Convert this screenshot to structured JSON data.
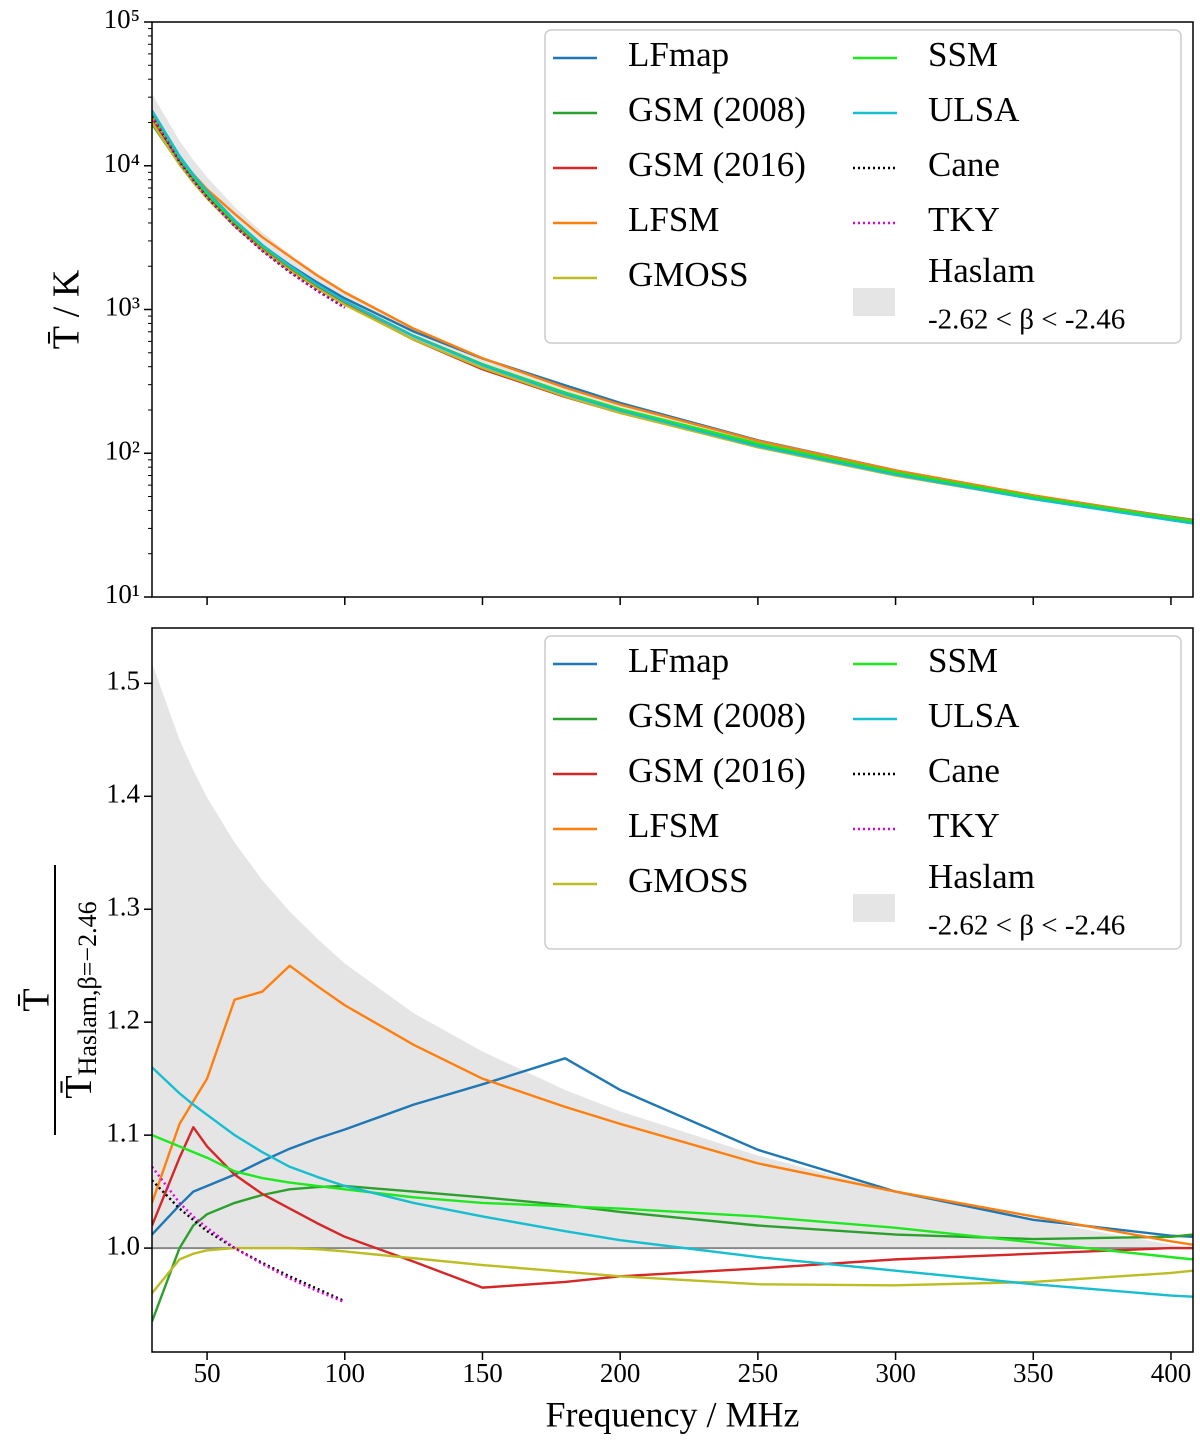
{
  "chart_data": [
    {
      "type": "line",
      "yscale": "log",
      "ylabel": "T̄ / K",
      "xlim": [
        30,
        408
      ],
      "ylim": [
        10,
        100000
      ],
      "yticks": [
        {
          "value": 10,
          "label": "10¹"
        },
        {
          "value": 100,
          "label": "10²"
        },
        {
          "value": 1000,
          "label": "10³"
        },
        {
          "value": 10000,
          "label": "10⁴"
        },
        {
          "value": 100000,
          "label": "10⁵"
        }
      ],
      "xticks": [
        50,
        100,
        150,
        200,
        250,
        300,
        350,
        400
      ],
      "legend": "upper right",
      "x": [
        30,
        40,
        45,
        50,
        60,
        70,
        80,
        90,
        100,
        125,
        150,
        180,
        200,
        250,
        300,
        350,
        400,
        408
      ],
      "band": {
        "name": "Haslam",
        "range_label": "-2.62 < β < -2.46",
        "color": "#e5e5e5",
        "upper": [
          31700,
          14910,
          10960,
          8320,
          5160,
          3446,
          2429,
          1784,
          1353,
          754,
          467,
          290,
          220,
          123,
          76.0,
          50.8,
          35.8,
          34
        ],
        "lower": [
          20880,
          10285,
          7705,
          5946,
          3798,
          2599,
          1871,
          1400,
          1081,
          624,
          398,
          254.5,
          196.4,
          113.4,
          72.4,
          49.6,
          35.7,
          34
        ]
      },
      "series": [
        {
          "name": "LFmap",
          "color": "#1f77b4",
          "linestyle": "solid",
          "values": [
            21130,
            10680,
            8090,
            6270,
            4040,
            2800,
            2040,
            1540,
            1195,
            703,
            456,
            297,
            224,
            123,
            76.0,
            50.8,
            36.1,
            34.3
          ]
        },
        {
          "name": "GSM (2008)",
          "color": "#2ca02c",
          "linestyle": "solid",
          "values": [
            19520,
            10285,
            7860,
            6120,
            3950,
            2720,
            1970,
            1476,
            1140,
            655,
            416,
            264,
            203,
            116,
            73.3,
            50.0,
            36.1,
            34.4
          ]
        },
        {
          "name": "GSM (2016)",
          "color": "#d62728",
          "linestyle": "solid",
          "values": [
            21300,
            11110,
            8530,
            6480,
            4040,
            2720,
            1940,
            1430,
            1092,
            617,
            384,
            247,
            191,
            111,
            71.7,
            49.4,
            35.7,
            34.0
          ]
        },
        {
          "name": "LFSM",
          "color": "#ff7f0e",
          "linestyle": "solid",
          "values": [
            21720,
            11420,
            8710,
            6840,
            4630,
            3190,
            2340,
            1725,
            1313,
            736,
            458,
            286,
            218,
            122,
            76.0,
            51.0,
            35.9,
            34.1
          ]
        },
        {
          "name": "GMOSS",
          "color": "#bcbd22",
          "linestyle": "solid",
          "values": [
            20040,
            10180,
            7670,
            5930,
            3798,
            2599,
            1871,
            1399,
            1078,
            618,
            392,
            249,
            191,
            110,
            70.0,
            48.1,
            34.9,
            33.3
          ]
        },
        {
          "name": "SSM",
          "color": "#1ee81e",
          "linestyle": "solid",
          "values": [
            22970,
            11210,
            8360,
            6420,
            4060,
            2760,
            1980,
            1477,
            1137,
            652,
            414,
            264,
            203,
            117,
            73.7,
            49.8,
            35.4,
            33.7
          ]
        },
        {
          "name": "ULSA",
          "color": "#17becf",
          "linestyle": "solid",
          "values": [
            24220,
            11690,
            8680,
            6650,
            4180,
            2820,
            2010,
            1488,
            1140,
            649,
            409,
            258,
            198,
            112,
            71.0,
            48.0,
            34.2,
            32.5
          ]
        },
        {
          "name": "Cane",
          "color": "#000000",
          "linestyle": "dotted",
          "values": [
            22130,
            10645,
            7900,
            6035,
            3798,
            2565,
            1824,
            1350,
            1030,
            null,
            null,
            null,
            null,
            null,
            null,
            null,
            null,
            null
          ]
        },
        {
          "name": "TKY",
          "color": "#e000e0",
          "linestyle": "dotted",
          "values": [
            22380,
            10700,
            7920,
            6050,
            3798,
            2563,
            1820,
            1347,
            1029,
            null,
            null,
            null,
            null,
            null,
            null,
            null,
            null,
            null
          ]
        }
      ]
    },
    {
      "type": "line",
      "yscale": "linear",
      "ylabel_numerator": "T̄",
      "ylabel_denominator": "T̄",
      "ylabel_subscript": "Haslam,β=−2.46",
      "xlabel": "Frequency / MHz",
      "xlim": [
        30,
        408
      ],
      "ylim": [
        0.908,
        1.549
      ],
      "yticks": [
        {
          "value": 1,
          "label": "1.0"
        },
        1.1,
        1.2,
        1.3,
        1.4,
        1.5
      ],
      "xticks": [
        50,
        100,
        150,
        200,
        250,
        300,
        350,
        400
      ],
      "hline": 1,
      "legend": "upper right",
      "x": [
        30,
        40,
        45,
        50,
        60,
        70,
        80,
        90,
        100,
        125,
        150,
        180,
        200,
        250,
        300,
        350,
        400,
        408
      ],
      "band": {
        "name": "Haslam",
        "range_label": "-2.62 < β < -2.46",
        "color": "#e5e5e5",
        "upper": [
          1.518,
          1.45,
          1.423,
          1.399,
          1.359,
          1.326,
          1.298,
          1.274,
          1.252,
          1.208,
          1.174,
          1.14,
          1.121,
          1.082,
          1.05,
          1.025,
          1.003,
          1.0
        ],
        "lower": [
          1,
          1,
          1,
          1,
          1,
          1,
          1,
          1,
          1,
          1,
          1,
          1,
          1,
          1,
          1,
          1,
          1,
          1
        ]
      },
      "series": [
        {
          "name": "LFmap",
          "color": "#1f77b4",
          "linestyle": "solid",
          "values": [
            1.012,
            1.038,
            1.05,
            1.055,
            1.065,
            1.077,
            1.088,
            1.097,
            1.105,
            1.127,
            1.145,
            1.168,
            1.14,
            1.087,
            1.05,
            1.025,
            1.011,
            1.01
          ]
        },
        {
          "name": "GSM (2008)",
          "color": "#2ca02c",
          "linestyle": "solid",
          "values": [
            0.935,
            1.0,
            1.02,
            1.03,
            1.04,
            1.047,
            1.052,
            1.054,
            1.055,
            1.05,
            1.045,
            1.038,
            1.032,
            1.02,
            1.012,
            1.008,
            1.01,
            1.012
          ]
        },
        {
          "name": "GSM (2016)",
          "color": "#d62728",
          "linestyle": "solid",
          "values": [
            1.02,
            1.08,
            1.107,
            1.09,
            1.065,
            1.048,
            1.035,
            1.022,
            1.01,
            0.988,
            0.965,
            0.97,
            0.975,
            0.982,
            0.99,
            0.995,
            1.0,
            1.0
          ]
        },
        {
          "name": "LFSM",
          "color": "#ff7f0e",
          "linestyle": "solid",
          "values": [
            1.04,
            1.11,
            1.13,
            1.15,
            1.22,
            1.227,
            1.25,
            1.232,
            1.215,
            1.18,
            1.15,
            1.125,
            1.11,
            1.075,
            1.05,
            1.028,
            1.006,
            1.003
          ]
        },
        {
          "name": "GMOSS",
          "color": "#bcbd22",
          "linestyle": "solid",
          "values": [
            0.96,
            0.99,
            0.995,
            0.998,
            1.0,
            1.0,
            1.0,
            0.999,
            0.997,
            0.991,
            0.985,
            0.979,
            0.975,
            0.968,
            0.967,
            0.97,
            0.978,
            0.98
          ]
        },
        {
          "name": "SSM",
          "color": "#1ee81e",
          "linestyle": "solid",
          "values": [
            1.1,
            1.09,
            1.085,
            1.08,
            1.068,
            1.062,
            1.058,
            1.055,
            1.052,
            1.045,
            1.04,
            1.037,
            1.035,
            1.028,
            1.018,
            1.005,
            0.992,
            0.99
          ]
        },
        {
          "name": "ULSA",
          "color": "#17becf",
          "linestyle": "solid",
          "values": [
            1.16,
            1.137,
            1.127,
            1.118,
            1.1,
            1.085,
            1.072,
            1.063,
            1.055,
            1.04,
            1.028,
            1.015,
            1.007,
            0.992,
            0.98,
            0.968,
            0.958,
            0.957
          ]
        },
        {
          "name": "Cane",
          "color": "#000000",
          "linestyle": "dotted",
          "values": [
            1.06,
            1.035,
            1.025,
            1.015,
            1.0,
            0.987,
            0.975,
            0.964,
            0.953,
            null,
            null,
            null,
            null,
            null,
            null,
            null,
            null,
            null
          ]
        },
        {
          "name": "TKY",
          "color": "#e000e0",
          "linestyle": "dotted",
          "values": [
            1.072,
            1.04,
            1.028,
            1.018,
            1.0,
            0.986,
            0.973,
            0.962,
            0.952,
            null,
            null,
            null,
            null,
            null,
            null,
            null,
            null,
            null
          ]
        }
      ]
    }
  ]
}
